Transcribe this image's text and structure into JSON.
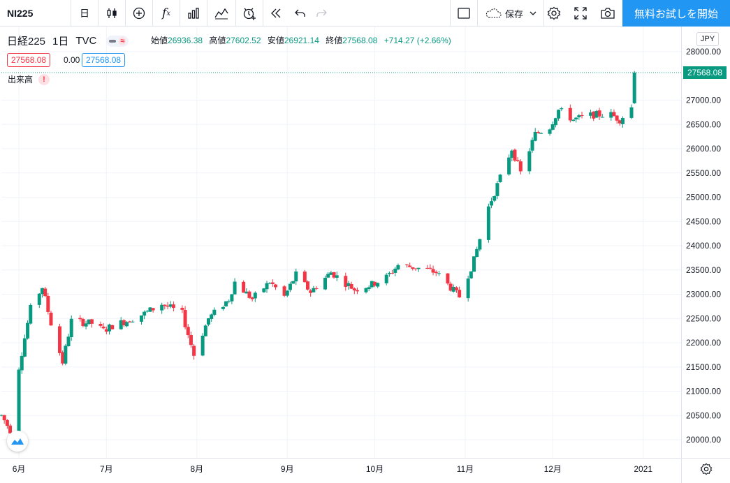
{
  "toolbar": {
    "symbol": "NI225",
    "interval": "日",
    "save_label": "保存",
    "cta_label": "無料お試しを開始",
    "icons": [
      "candles-icon",
      "add-compare-icon",
      "indicators-icon",
      "templates-icon",
      "chart-type-icon",
      "alert-icon",
      "replay-icon",
      "undo-icon",
      "redo-icon",
      "layout-icon",
      "cloud-save-icon",
      "chevron-down-icon",
      "settings-icon",
      "fullscreen-icon",
      "camera-icon"
    ]
  },
  "legend": {
    "name": "日経225",
    "interval": "1日",
    "exchange": "TVC",
    "open_label": "始値",
    "open": "26936.38",
    "high_label": "高値",
    "high": "27602.52",
    "low_label": "安値",
    "low": "26921.14",
    "close_label": "終値",
    "close": "27568.08",
    "change": "+714.27 (+2.66%)",
    "bid": "27568.08",
    "spread": "0.00",
    "ask": "27568.08",
    "volume_label": "出来高",
    "warning": "!"
  },
  "price_scale": {
    "currency": "JPY",
    "last_price": "27568.08",
    "ticks": [
      "28000.00",
      "27000.00",
      "26500.00",
      "26000.00",
      "25500.00",
      "25000.00",
      "24500.00",
      "24000.00",
      "23500.00",
      "23000.00",
      "22500.00",
      "22000.00",
      "21500.00",
      "21000.00",
      "20500.00",
      "20000.00"
    ]
  },
  "time_scale": {
    "labels": [
      {
        "label": "6月",
        "date": "2020-06-01"
      },
      {
        "label": "7月",
        "date": "2020-07-01"
      },
      {
        "label": "8月",
        "date": "2020-08-01"
      },
      {
        "label": "9月",
        "date": "2020-09-01"
      },
      {
        "label": "10月",
        "date": "2020-10-01"
      },
      {
        "label": "11月",
        "date": "2020-11-01"
      },
      {
        "label": "12月",
        "date": "2020-12-01"
      },
      {
        "label": "2021",
        "date": "2021-01-01"
      }
    ]
  },
  "colors": {
    "up": "#089981",
    "down": "#f23645",
    "accent": "#2196f3",
    "grid": "#f0f3fa"
  },
  "chart_data": {
    "type": "candlestick",
    "symbol": "日経225",
    "ylim": [
      19800,
      28300
    ],
    "x_start": "2020-05-26",
    "x_end": "2021-01-14",
    "ohlc_close_path": [
      [
        "2020-05-26",
        20500
      ],
      [
        "2020-05-29",
        20200
      ],
      [
        "2020-06-01",
        21500
      ],
      [
        "2020-06-05",
        22700
      ],
      [
        "2020-06-09",
        23150
      ],
      [
        "2020-06-12",
        22400
      ],
      [
        "2020-06-16",
        21600
      ],
      [
        "2020-06-19",
        22450
      ],
      [
        "2020-06-26",
        22400
      ],
      [
        "2020-06-30",
        22250
      ],
      [
        "2020-07-03",
        22350
      ],
      [
        "2020-07-08",
        22450
      ],
      [
        "2020-07-14",
        22600
      ],
      [
        "2020-07-20",
        22800
      ],
      [
        "2020-07-27",
        22600
      ],
      [
        "2020-07-31",
        21750
      ],
      [
        "2020-08-05",
        22500
      ],
      [
        "2020-08-12",
        22900
      ],
      [
        "2020-08-14",
        23250
      ],
      [
        "2020-08-20",
        22900
      ],
      [
        "2020-08-26",
        23250
      ],
      [
        "2020-08-31",
        22950
      ],
      [
        "2020-09-04",
        23400
      ],
      [
        "2020-09-09",
        23050
      ],
      [
        "2020-09-16",
        23450
      ],
      [
        "2020-09-24",
        23100
      ],
      [
        "2020-09-30",
        23200
      ],
      [
        "2020-10-05",
        23350
      ],
      [
        "2020-10-09",
        23600
      ],
      [
        "2020-10-15",
        23550
      ],
      [
        "2020-10-22",
        23450
      ],
      [
        "2020-10-30",
        22950
      ],
      [
        "2020-11-04",
        23700
      ],
      [
        "2020-11-09",
        24800
      ],
      [
        "2020-11-13",
        25400
      ],
      [
        "2020-11-17",
        26000
      ],
      [
        "2020-11-20",
        25500
      ],
      [
        "2020-11-25",
        26300
      ],
      [
        "2020-11-30",
        26450
      ],
      [
        "2020-12-03",
        26800
      ],
      [
        "2020-12-08",
        26600
      ],
      [
        "2020-12-15",
        26700
      ],
      [
        "2020-12-21",
        26700
      ],
      [
        "2020-12-24",
        26600
      ],
      [
        "2020-12-28",
        26850
      ],
      [
        "2020-12-30",
        27568.08
      ]
    ]
  }
}
